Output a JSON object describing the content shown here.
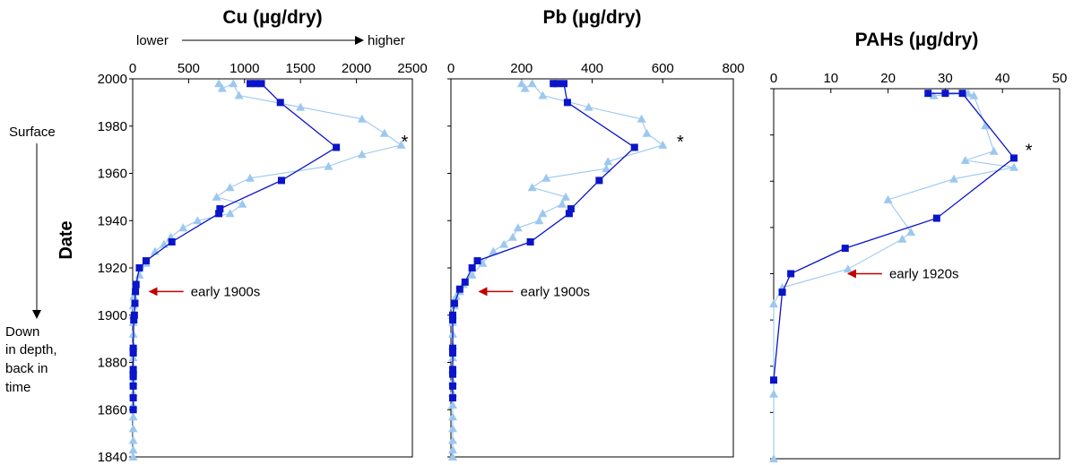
{
  "chart_data": [
    {
      "type": "line",
      "title": "Cu (µg/dry)",
      "ylabel": "Date",
      "xlim": [
        0,
        2500
      ],
      "ylim": [
        1840,
        2000
      ],
      "xticks": [
        0,
        500,
        1000,
        1500,
        2000,
        2500
      ],
      "yticks": [
        1840,
        1860,
        1880,
        1900,
        1920,
        1940,
        1960,
        1980,
        2000
      ],
      "scale_hint": {
        "left": "lower",
        "right": "higher"
      },
      "surface_label": "Surface",
      "depth_label": [
        "Down",
        "in depth,",
        "back in",
        "time"
      ],
      "annotation": {
        "text": "early 1900s",
        "x": 150,
        "y": 1910
      },
      "peak_marker": {
        "text": "*",
        "x": 2400,
        "y": 1972
      },
      "series": [
        {
          "marker": "square",
          "color": "#0a14c8",
          "x": [
            1050,
            1100,
            1150,
            1320,
            1820,
            1330,
            780,
            770,
            350,
            120,
            60,
            30,
            25,
            20,
            15,
            10,
            5,
            5,
            5,
            5,
            5,
            5,
            5,
            5
          ],
          "y": [
            1998,
            1998,
            1998,
            1990,
            1971,
            1957,
            1945,
            1943,
            1931,
            1923,
            1920,
            1913,
            1910,
            1905,
            1900,
            1898,
            1886,
            1884,
            1877,
            1875,
            1874,
            1870,
            1865,
            1860
          ]
        },
        {
          "marker": "triangle",
          "color": "#9cc8f0",
          "x": [
            770,
            800,
            900,
            950,
            1500,
            2050,
            2250,
            2400,
            2050,
            1750,
            1050,
            870,
            750,
            980,
            870,
            580,
            450,
            340,
            280,
            200,
            120,
            60,
            30,
            20,
            10,
            5,
            5,
            5,
            5,
            5,
            5,
            5,
            5,
            5,
            5,
            5,
            5,
            5,
            5,
            5
          ],
          "y": [
            1998,
            1996,
            1998,
            1993,
            1988,
            1983,
            1977,
            1972,
            1968,
            1963,
            1958,
            1954,
            1950,
            1947,
            1943,
            1940,
            1937,
            1933,
            1930,
            1927,
            1922,
            1917,
            1913,
            1910,
            1908,
            1904,
            1900,
            1897,
            1892,
            1887,
            1882,
            1877,
            1872,
            1867,
            1862,
            1857,
            1852,
            1847,
            1843,
            1840
          ]
        }
      ]
    },
    {
      "type": "line",
      "title": "Pb (µg/dry)",
      "xlim": [
        0,
        800
      ],
      "ylim": [
        1840,
        2000
      ],
      "xticks": [
        0,
        200,
        400,
        600,
        800
      ],
      "annotation": {
        "text": "early 1900s",
        "x": 80,
        "y": 1910
      },
      "peak_marker": {
        "text": "*",
        "x": 640,
        "y": 1972
      },
      "series": [
        {
          "marker": "square",
          "color": "#0a14c8",
          "x": [
            290,
            300,
            320,
            330,
            520,
            420,
            340,
            335,
            225,
            75,
            60,
            40,
            25,
            10,
            5,
            5,
            5,
            5,
            5,
            5,
            5,
            5
          ],
          "y": [
            1998,
            1998,
            1998,
            1990,
            1971,
            1957,
            1945,
            1943,
            1931,
            1923,
            1920,
            1914,
            1911,
            1905,
            1900,
            1898,
            1886,
            1884,
            1877,
            1875,
            1870,
            1865
          ],
          "name": ""
        },
        {
          "marker": "triangle",
          "color": "#9cc8f0",
          "x": [
            200,
            210,
            230,
            260,
            390,
            540,
            555,
            600,
            445,
            440,
            270,
            230,
            325,
            315,
            260,
            250,
            190,
            175,
            150,
            120,
            90,
            60,
            35,
            25,
            15,
            10,
            5,
            5,
            5,
            5,
            5,
            5,
            5,
            5,
            5,
            5,
            5,
            5,
            5,
            5
          ],
          "y": [
            1998,
            1996,
            1998,
            1993,
            1988,
            1983,
            1977,
            1972,
            1965,
            1962,
            1958,
            1954,
            1950,
            1947,
            1943,
            1940,
            1937,
            1933,
            1930,
            1927,
            1922,
            1917,
            1913,
            1910,
            1908,
            1904,
            1900,
            1897,
            1892,
            1887,
            1882,
            1877,
            1872,
            1867,
            1862,
            1857,
            1852,
            1847,
            1843,
            1840
          ]
        }
      ]
    },
    {
      "type": "line",
      "title": "PAHs (µg/dry)",
      "xlim": [
        0,
        50
      ],
      "ylim": [
        1840,
        2000
      ],
      "xticks": [
        0,
        10,
        20,
        30,
        40,
        50
      ],
      "annotation": {
        "text": "early 1920s",
        "x": 13,
        "y": 1920
      },
      "peak_marker": {
        "text": "*",
        "x": 44,
        "y": 1972
      },
      "series": [
        {
          "marker": "square",
          "color": "#0a14c8",
          "x": [
            27,
            30,
            33,
            42,
            28.5,
            12.5,
            3,
            1.5,
            0
          ],
          "y": [
            1998,
            1998,
            1998,
            1970,
            1944,
            1931,
            1920,
            1912,
            1874
          ]
        },
        {
          "marker": "triangle",
          "color": "#9cc8f0",
          "x": [
            27,
            28,
            34,
            35,
            37,
            38.5,
            33.5,
            42,
            31.5,
            20,
            24,
            22.5,
            13,
            1.5,
            0,
            0,
            0
          ],
          "y": [
            1998,
            1997,
            1998,
            1997,
            1984,
            1973,
            1969,
            1966,
            1961,
            1952,
            1938,
            1935,
            1922,
            1914,
            1907,
            1868,
            1840
          ]
        }
      ]
    }
  ]
}
